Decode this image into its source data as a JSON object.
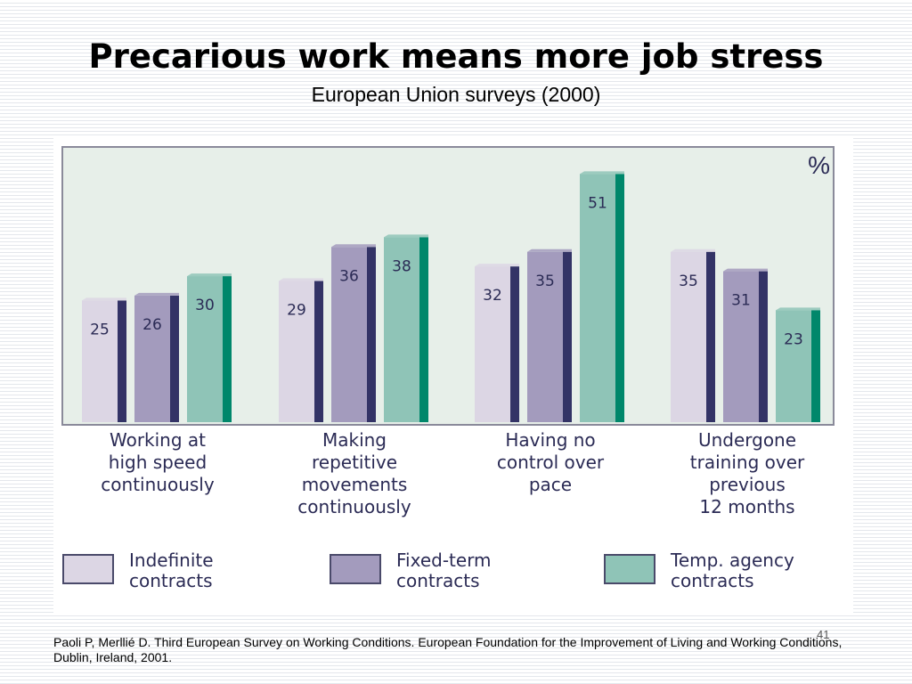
{
  "slide": {
    "title": "Precarious work means more job stress",
    "subtitle": "European Union surveys (2000)",
    "footer": "Paoli P, Merllié D. Third European Survey on Working Conditions. European Foundation for the Improvement of Living and Working Conditions, Dublin, Ireland, 2001.",
    "slide_number": "41"
  },
  "chart_data": {
    "type": "bar",
    "unit_label": "%",
    "categories": [
      [
        "Working at",
        "high speed",
        "continuously"
      ],
      [
        "Making",
        "repetitive",
        "movements",
        "continuously"
      ],
      [
        "Having no",
        "control over",
        "pace"
      ],
      [
        "Undergone",
        "training over",
        "previous",
        "12 months"
      ]
    ],
    "series": [
      {
        "legend": [
          "Indefinite",
          "contracts"
        ],
        "values": [
          25,
          29,
          32,
          35
        ],
        "color": "#dcd6e4",
        "side": "#333366"
      },
      {
        "legend": [
          "Fixed-term",
          "contracts"
        ],
        "values": [
          26,
          36,
          35,
          31
        ],
        "color": "#a39bbd",
        "side": "#333366"
      },
      {
        "legend": [
          "Temp. agency",
          "contracts"
        ],
        "values": [
          30,
          38,
          51,
          23
        ],
        "color": "#8fc4b7",
        "side": "#00876b"
      }
    ],
    "ylim": [
      0,
      56
    ],
    "grid": false,
    "legend_position": "bottom",
    "colors": {
      "plot_background": "#e7efe9",
      "plot_border": "#8a8a9a",
      "label_text": "#2b2b55"
    }
  }
}
